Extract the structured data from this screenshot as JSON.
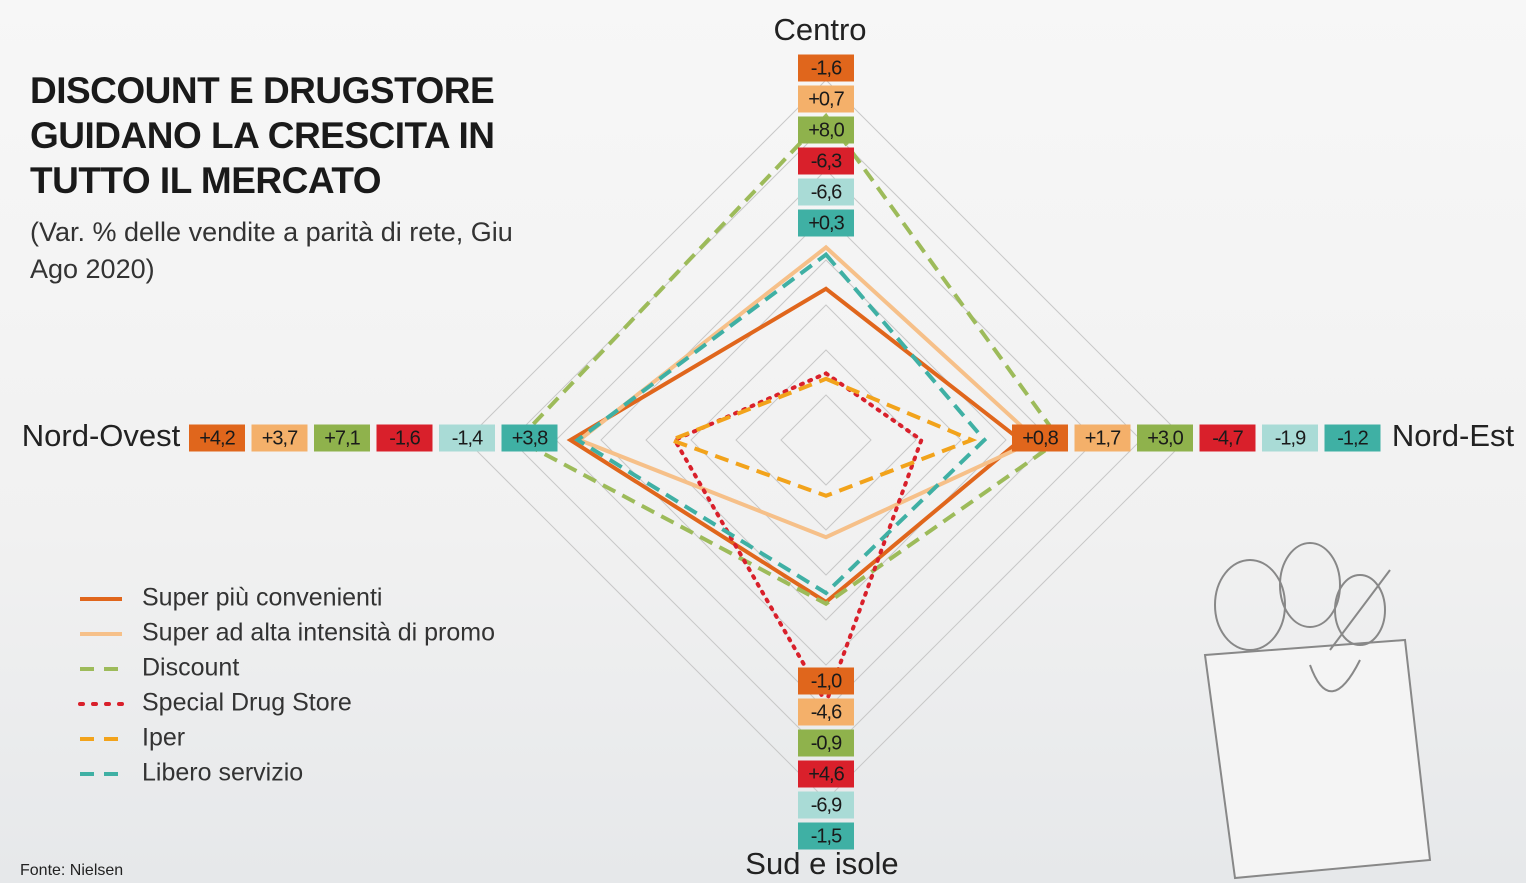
{
  "chart_data": {
    "type": "radar",
    "title": "DISCOUNT E DRUGSTORE GUIDANO LA CRESCITA IN TUTTO IL MERCATO",
    "subtitle": "(Var. % delle vendite a parità di rete, Giu Ago 2020)",
    "source": "Fonte: Nielsen",
    "categories": [
      "Centro",
      "Nord-Est",
      "Sud e isole",
      "Nord-Ovest"
    ],
    "rlim": [
      -10,
      10
    ],
    "series": [
      {
        "name": "Super più convenienti",
        "color": "#e0661c",
        "label_color": "#e0661c",
        "line_style": "solid",
        "values": [
          -1.6,
          0.8,
          -1.0,
          4.2
        ],
        "value_labels": [
          "-1,6",
          "+0,8",
          "-1,0",
          "+4,2"
        ]
      },
      {
        "name": "Super ad alta intensità di promo",
        "color": "#f6c089",
        "label_color": "#f4b06a",
        "line_style": "solid",
        "values": [
          0.7,
          1.7,
          -4.6,
          3.7
        ],
        "value_labels": [
          "+0,7",
          "+1,7",
          "-4,6",
          "+3,7"
        ]
      },
      {
        "name": "Discount",
        "color": "#9dbb5a",
        "label_color": "#8fb24c",
        "line_style": "dashed",
        "values": [
          8.0,
          3.0,
          -0.9,
          7.1
        ],
        "value_labels": [
          "+8,0",
          "+3,0",
          "-0,9",
          "+7,1"
        ]
      },
      {
        "name": "Special Drug Store",
        "color": "#d9202b",
        "label_color": "#d9202b",
        "line_style": "dotted",
        "values": [
          -6.3,
          -4.7,
          4.6,
          -1.6
        ],
        "value_labels": [
          "-6,3",
          "-4,7",
          "+4,6",
          "-1,6"
        ]
      },
      {
        "name": "Iper",
        "color": "#f2a31b",
        "label_color": "#a9dbd6",
        "line_style": "dashed",
        "values": [
          -6.6,
          -1.9,
          -6.9,
          -1.4
        ],
        "value_labels": [
          "-6,6",
          "-1,9",
          "-6,9",
          "-1,4"
        ]
      },
      {
        "name": "Libero servizio",
        "color": "#3fb0a4",
        "label_color": "#3fb0a4",
        "line_style": "dashed",
        "values": [
          0.3,
          -1.2,
          -1.5,
          3.8
        ],
        "value_labels": [
          "+0,3",
          "-1,2",
          "-1,5",
          "+3,8"
        ]
      }
    ]
  }
}
